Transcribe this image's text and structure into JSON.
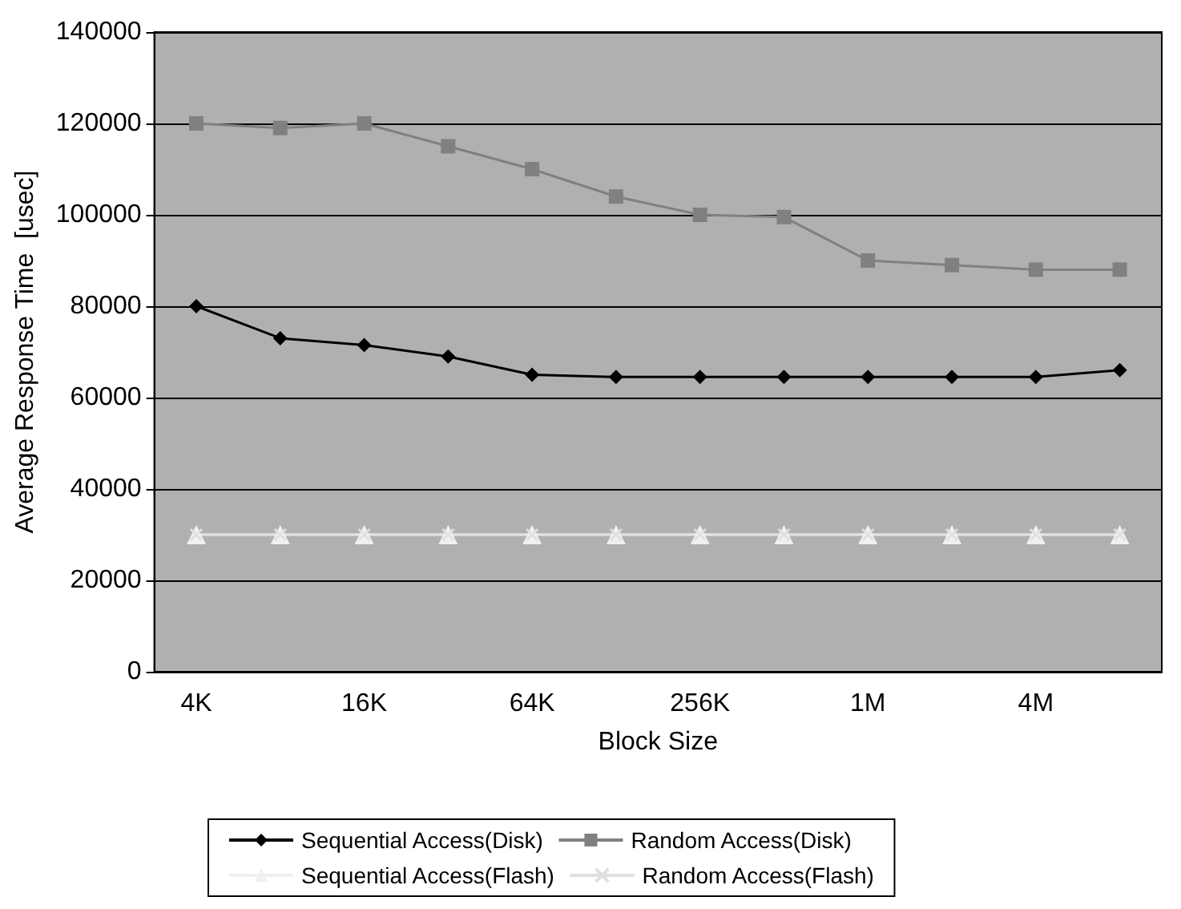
{
  "chart_data": {
    "type": "line",
    "xlabel": "Block Size",
    "ylabel": "Average Response Time  [usec]",
    "categories": [
      "4K",
      null,
      "16K",
      null,
      "64K",
      null,
      "256K",
      null,
      "1M",
      null,
      "4M",
      null
    ],
    "ylim": [
      0,
      140000
    ],
    "yticks": [
      0,
      20000,
      40000,
      60000,
      80000,
      100000,
      120000,
      140000
    ],
    "grid": "y",
    "legend": "bottom",
    "series": [
      {
        "name": "Sequential Access(Disk)",
        "color": "#000000",
        "marker": "diamond",
        "values": [
          80000,
          73000,
          71500,
          69000,
          65000,
          64500,
          64500,
          64500,
          64500,
          64500,
          64500,
          66000
        ]
      },
      {
        "name": "Random Access(Disk)",
        "color": "#808080",
        "marker": "square",
        "values": [
          120000,
          119000,
          120000,
          115000,
          110000,
          104000,
          100000,
          99500,
          90000,
          89000,
          88000,
          88000
        ]
      },
      {
        "name": "Sequential Access(Flash)",
        "color": "#f0f0f0",
        "marker": "triangle",
        "values": [
          30000,
          30000,
          30000,
          30000,
          30000,
          30000,
          30000,
          30000,
          30000,
          30000,
          30000,
          30000
        ]
      },
      {
        "name": "Random Access(Flash)",
        "color": "#e0e0e0",
        "marker": "cross",
        "values": [
          30000,
          30000,
          30000,
          30000,
          30000,
          30000,
          30000,
          30000,
          30000,
          30000,
          30000,
          30000
        ]
      }
    ]
  }
}
